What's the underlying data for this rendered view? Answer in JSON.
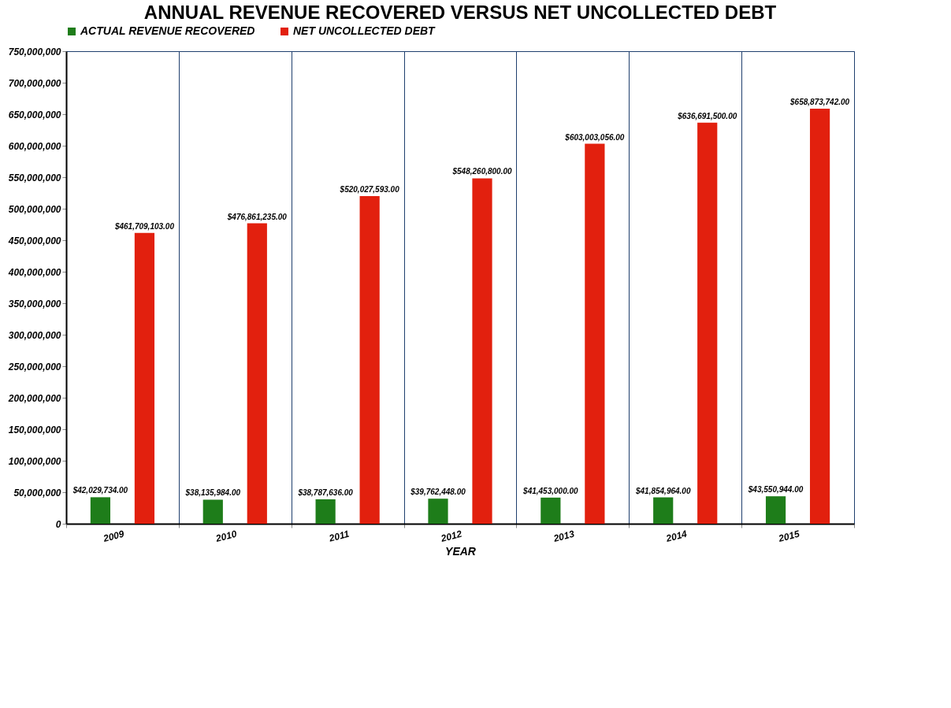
{
  "chart_data": {
    "type": "bar",
    "title": "ANNUAL REVENUE RECOVERED VERSUS NET UNCOLLECTED DEBT",
    "xlabel": "YEAR",
    "categories": [
      "2009",
      "2010",
      "2011",
      "2012",
      "2013",
      "2014",
      "2015"
    ],
    "series": [
      {
        "name": "ACTUAL REVENUE RECOVERED",
        "color": "#1e7d1a",
        "values": [
          42029734,
          38135984,
          38787636,
          39762448,
          41453000,
          41854964,
          43550944
        ],
        "value_labels": [
          "$42,029,734.00",
          "$38,135,984.00",
          "$38,787,636.00",
          "$39,762,448.00",
          "$41,453,000.00",
          "$41,854,964.00",
          "$43,550,944.00"
        ]
      },
      {
        "name": "NET UNCOLLECTED DEBT",
        "color": "#e2200e",
        "values": [
          461709103,
          476861235,
          520027593,
          548260800,
          603003056,
          636691500,
          658873742
        ],
        "value_labels": [
          "$461,709,103.00",
          "$476,861,235.00",
          "$520,027,593.00",
          "$548,260,800.00",
          "$603,003,056.00",
          "$636,691,500.00",
          "$658,873,742.00"
        ]
      }
    ],
    "ylim": [
      0,
      750000000
    ],
    "yticks": [
      0,
      {
        "value": 50000000,
        "label": "50,000,000"
      },
      {
        "value": 100000000,
        "label": "100,000,000"
      },
      {
        "value": 150000000,
        "label": "150,000,000"
      },
      {
        "value": 200000000,
        "label": "200,000,000"
      },
      {
        "value": 250000000,
        "label": "250,000,000"
      },
      {
        "value": 300000000,
        "label": "300,000,000"
      },
      {
        "value": 350000000,
        "label": "350,000,000"
      },
      {
        "value": 400000000,
        "label": "400,000,000"
      },
      {
        "value": 450000000,
        "label": "450,000,000"
      },
      {
        "value": 500000000,
        "label": "500,000,000"
      },
      {
        "value": 550000000,
        "label": "550,000,000"
      },
      {
        "value": 600000000,
        "label": "600,000,000"
      },
      {
        "value": 650000000,
        "label": "650,000,000"
      },
      {
        "value": 700000000,
        "label": "700,000,000"
      },
      {
        "value": 750000000,
        "label": "750,000,000"
      }
    ],
    "grid": "x",
    "legend": "top left"
  }
}
